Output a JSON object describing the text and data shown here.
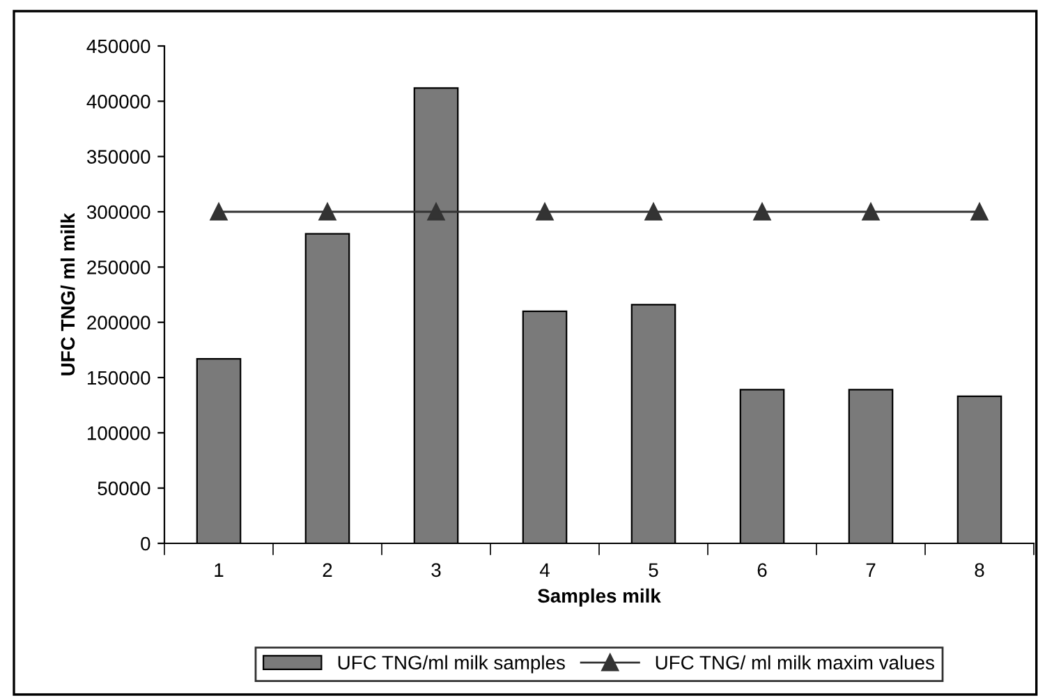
{
  "chart_data": {
    "type": "bar",
    "xlabel": "Samples milk",
    "ylabel": "UFC TNG/ ml milk",
    "categories": [
      "1",
      "2",
      "3",
      "4",
      "5",
      "6",
      "7",
      "8"
    ],
    "series": [
      {
        "name": "UFC TNG/ml milk samples",
        "color": "#7a7a7a",
        "values": [
          167000,
          280000,
          412000,
          210000,
          216000,
          139000,
          139000,
          133000
        ]
      },
      {
        "name": "UFC TNG/ ml milk maxim values",
        "type": "line",
        "color": "#333333",
        "marker": "triangle",
        "values": [
          300000,
          300000,
          300000,
          300000,
          300000,
          300000,
          300000,
          300000
        ]
      }
    ],
    "ylim": [
      0,
      450000
    ],
    "yticks": [
      0,
      50000,
      100000,
      150000,
      200000,
      250000,
      300000,
      350000,
      400000,
      450000
    ],
    "grid": false,
    "legend": "bottom"
  }
}
